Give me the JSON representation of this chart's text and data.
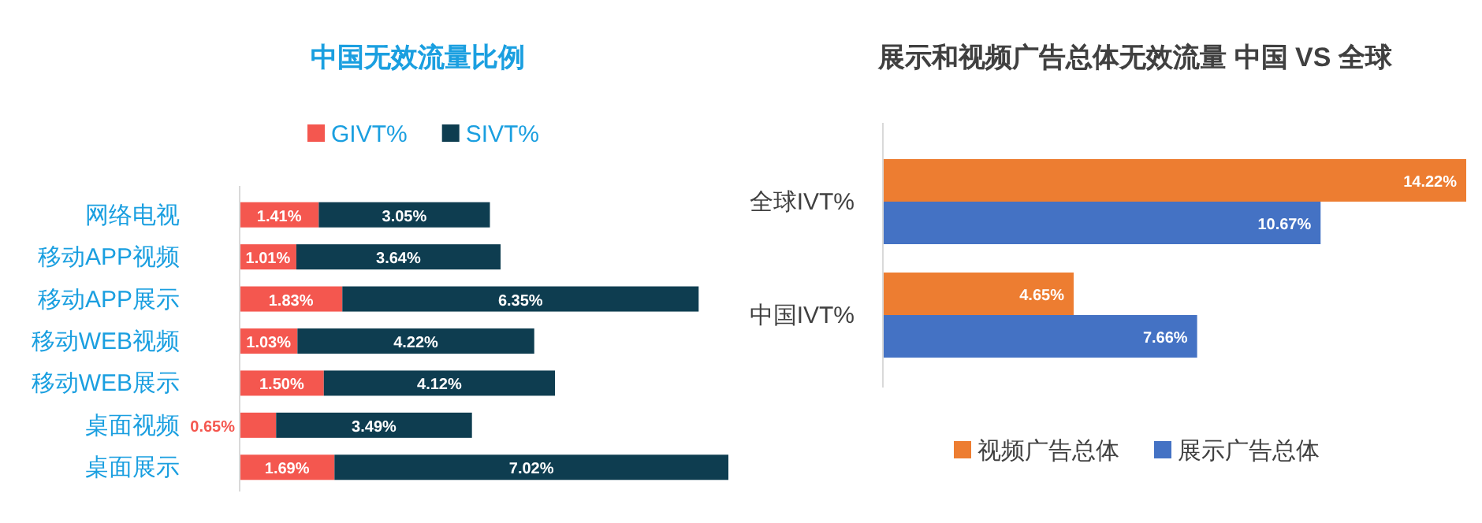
{
  "chart_data": [
    {
      "type": "bar",
      "title": "中国无效流量比例",
      "orientation": "horizontal",
      "stacked": true,
      "legend": "top",
      "categories": [
        "网络电视",
        "移动APP视频",
        "移动APP展示",
        "移动WEB视频",
        "移动WEB展示",
        "桌面视频",
        "桌面展示"
      ],
      "series": [
        {
          "name": "GIVT%",
          "color": "#f4574f",
          "values": [
            1.41,
            1.01,
            1.83,
            1.03,
            1.5,
            0.65,
            1.69
          ],
          "value_labels": [
            "1.41%",
            "1.01%",
            "1.83%",
            "1.03%",
            "1.50%",
            "0.65%",
            "1.69%"
          ]
        },
        {
          "name": "SIVT%",
          "color": "#0e3d50",
          "values": [
            3.05,
            3.64,
            6.35,
            4.22,
            4.12,
            3.49,
            7.02
          ],
          "value_labels": [
            "3.05%",
            "3.64%",
            "6.35%",
            "4.22%",
            "4.12%",
            "3.49%",
            "7.02%"
          ]
        }
      ]
    },
    {
      "type": "bar",
      "title": "展示和视频广告总体无效流量 中国 VS 全球",
      "orientation": "horizontal",
      "legend": "bottom",
      "categories": [
        "全球IVT%",
        "中国IVT%"
      ],
      "series": [
        {
          "name": "视频广告总体",
          "color": "#ed7d31",
          "values": [
            14.22,
            4.65
          ],
          "value_labels": [
            "14.22%",
            "4.65%"
          ]
        },
        {
          "name": "展示广告总体",
          "color": "#4472c4",
          "values": [
            10.67,
            7.66
          ],
          "value_labels": [
            "10.67%",
            "7.66%"
          ]
        }
      ]
    }
  ]
}
